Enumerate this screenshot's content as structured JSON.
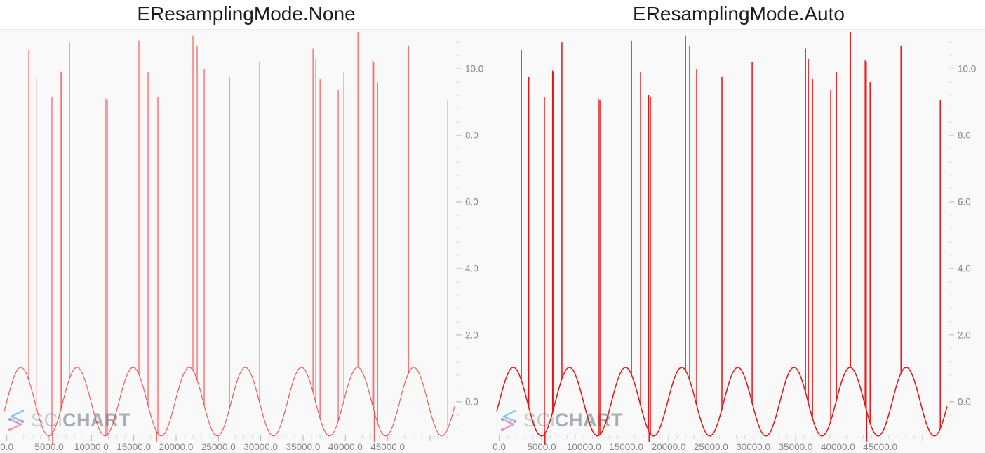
{
  "page": {
    "background": "#ffffff"
  },
  "charts": [
    {
      "id": "none",
      "title": "EResamplingMode.None",
      "series_style": {
        "stroke": "#f93535",
        "stroke_width": 1.1,
        "opacity": 0.88
      }
    },
    {
      "id": "auto",
      "title": "EResamplingMode.Auto",
      "series_style": {
        "stroke": "#e81212",
        "stroke_width": 1.5,
        "opacity": 1
      }
    }
  ],
  "watermark": {
    "icon": "scichart-logo-icon",
    "text_light": "SCi",
    "text_bold": "CHART",
    "light_color": "#bcc5cb",
    "bold_color": "#9aa1a9",
    "icon_color_top": "#6ec6f0",
    "icon_color_bottom": "#e88ab8"
  },
  "axis_style": {
    "label_color": "#858585",
    "major_tick_color": "#b3b3b3",
    "minor_tick_color": "#d9d9d9",
    "surface_bg": "#f9f9fa",
    "series_color": "#ff0000"
  },
  "chart_data": {
    "type": "line",
    "title": "EResamplingMode.None vs EResamplingMode.Auto (same series rendered twice)",
    "xlabel": "",
    "ylabel": "",
    "grid": false,
    "legend": false,
    "x_range": [
      -800,
      52900
    ],
    "y_range": [
      -1.14,
      11.16
    ],
    "x_major_step": 5000,
    "x_minor_step": 1000,
    "y_major_step": 2,
    "y_minor_step": 0.4,
    "x_tick_values": [
      0,
      5000,
      10000,
      15000,
      20000,
      25000,
      30000,
      35000,
      40000,
      45000
    ],
    "x_tick_labels": [
      "0.0",
      "5000.0",
      "10000.0",
      "15000.0",
      "20000.0",
      "25000.0",
      "30000.0",
      "35000.0",
      "40000.0",
      "45000.0"
    ],
    "y_tick_values": [
      0,
      2,
      4,
      6,
      8,
      10
    ],
    "y_tick_labels": [
      "0.0",
      "2.0",
      "4.0",
      "6.0",
      "8.0",
      "10.0"
    ],
    "baseline": {
      "shape": "sine",
      "amplitude": 1.03,
      "period": 6630,
      "phase_zero_x": 0
    },
    "spikes": [
      [
        2600,
        10.55
      ],
      [
        3480,
        9.75
      ],
      [
        5330,
        9.15
      ],
      [
        6300,
        9.95
      ],
      [
        6430,
        9.9
      ],
      [
        7400,
        10.8
      ],
      [
        11710,
        9.1
      ],
      [
        11880,
        9.05
      ],
      [
        15610,
        10.85
      ],
      [
        16690,
        9.9
      ],
      [
        17640,
        9.2
      ],
      [
        17850,
        9.15
      ],
      [
        21990,
        11.0
      ],
      [
        22490,
        10.7
      ],
      [
        23320,
        10.0
      ],
      [
        26300,
        9.75
      ],
      [
        29870,
        10.2
      ],
      [
        36170,
        10.6
      ],
      [
        36500,
        10.3
      ],
      [
        37000,
        9.7
      ],
      [
        39150,
        9.35
      ],
      [
        39820,
        9.9
      ],
      [
        41480,
        11.1
      ],
      [
        43220,
        10.25
      ],
      [
        43350,
        10.2
      ],
      [
        43800,
        9.6
      ],
      [
        47450,
        10.7
      ],
      [
        52090,
        9.05
      ]
    ],
    "dips": [
      [
        5400,
        -1.28
      ],
      [
        17700,
        -1.2
      ],
      [
        43400,
        -1.2
      ]
    ]
  }
}
